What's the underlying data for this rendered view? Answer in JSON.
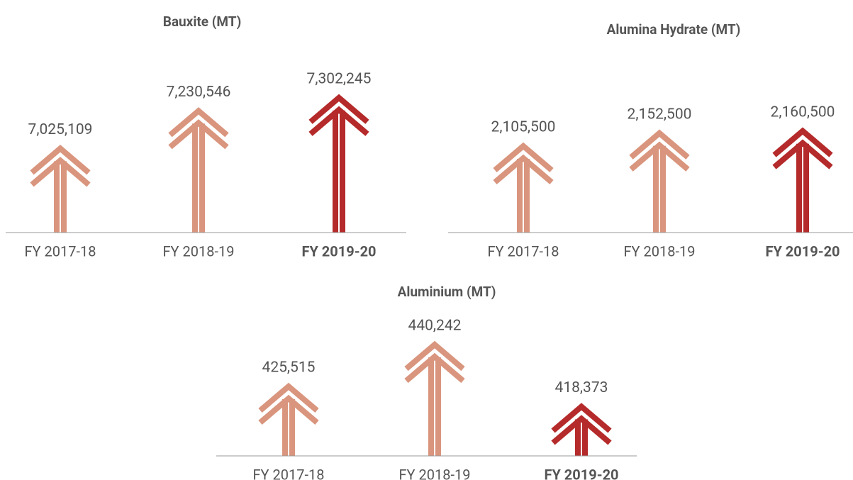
{
  "chart_data": [
    {
      "type": "bar",
      "title": "Bauxite (MT)",
      "categories": [
        "FY 2017-18",
        "FY 2018-19",
        "FY 2019-20"
      ],
      "values": [
        7025109,
        7230546,
        7302245
      ],
      "value_labels": [
        "7,025,109",
        "7,230,546",
        "7,302,245"
      ],
      "colors": [
        "#d9957d",
        "#d9957d",
        "#b52a2a"
      ],
      "highlight_color": "#b52a2a",
      "ylim": [
        6550000,
        7480000
      ]
    },
    {
      "type": "bar",
      "title": "Alumina Hydrate (MT)",
      "categories": [
        "FY 2017-18",
        "FY 2018-19",
        "FY 2019-20"
      ],
      "values": [
        2105500,
        2152500,
        2160500
      ],
      "value_labels": [
        "2,105,500",
        "2,152,500",
        "2,160,500"
      ],
      "colors": [
        "#d9957d",
        "#d9957d",
        "#b52a2a"
      ],
      "highlight_color": "#b52a2a",
      "ylim": [
        1780000,
        2400000
      ]
    },
    {
      "type": "bar",
      "title": "Aluminium (MT)",
      "categories": [
        "FY 2017-18",
        "FY 2018-19",
        "FY 2019-20"
      ],
      "values": [
        425515,
        440242,
        418373
      ],
      "value_labels": [
        "425,515",
        "440,242",
        "418,373"
      ],
      "colors": [
        "#d9957d",
        "#d9957d",
        "#b52a2a"
      ],
      "highlight_color": "#b52a2a",
      "ylim": [
        400000,
        460000
      ]
    }
  ]
}
